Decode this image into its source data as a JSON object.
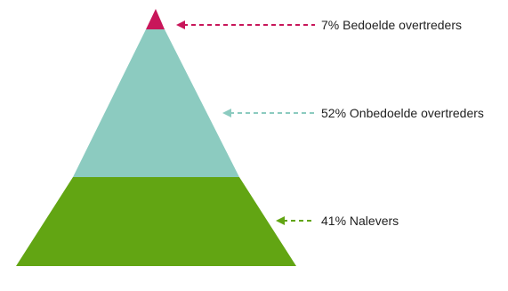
{
  "diagram": {
    "type": "pyramid",
    "levels": [
      {
        "label": "7% Bedoelde overtreders",
        "color": "#c8165a"
      },
      {
        "label": "52% Onbedoelde overtreders",
        "color": "#8ccbc0"
      },
      {
        "label": "41% Nalevers",
        "color": "#62a513"
      }
    ]
  }
}
